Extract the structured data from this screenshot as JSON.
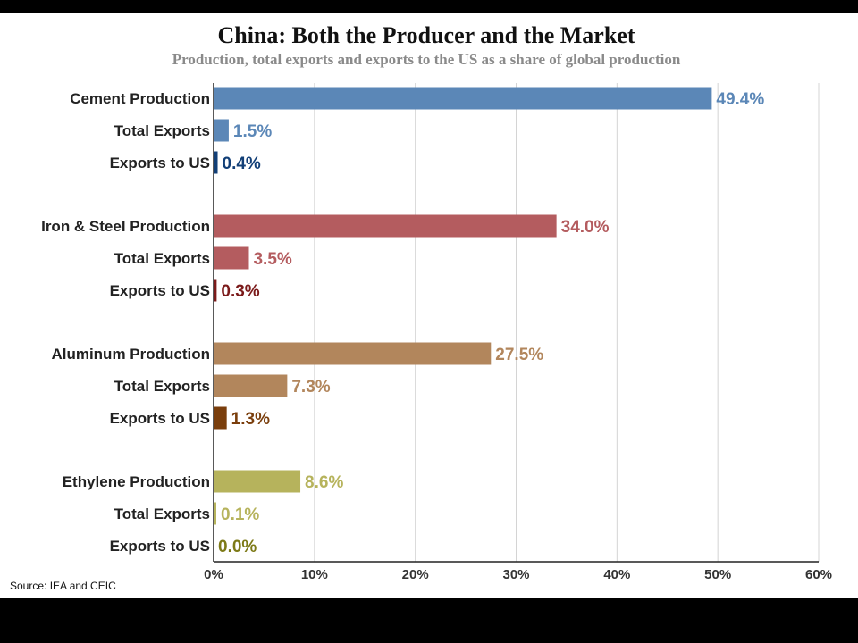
{
  "header": {
    "title": "China: Both the Producer and the Market",
    "subtitle": "Production, total exports and exports to the US as a share of global production"
  },
  "footer": {
    "source": "Source: IEA and CEIC"
  },
  "chart_data": {
    "type": "bar",
    "orientation": "horizontal",
    "title": "China: Both the Producer and the Market",
    "subtitle": "Production, total exports and exports to the US as a share of global production",
    "xlim": [
      0,
      60
    ],
    "x_ticks": [
      "0%",
      "10%",
      "20%",
      "30%",
      "40%",
      "50%",
      "60%"
    ],
    "grid": "vertical",
    "legend": "none",
    "unit": "%",
    "groups": [
      {
        "bars": [
          {
            "label": "Cement Production",
            "value": 49.4,
            "value_label": "49.4%",
            "color": "#5b87b7"
          },
          {
            "label": "Total Exports",
            "value": 1.5,
            "value_label": "1.5%",
            "color": "#5b87b7"
          },
          {
            "label": "Exports to US",
            "value": 0.4,
            "value_label": "0.4%",
            "color": "#123f77"
          }
        ]
      },
      {
        "bars": [
          {
            "label": "Iron & Steel Production",
            "value": 34.0,
            "value_label": "34.0%",
            "color": "#b45c5f"
          },
          {
            "label": "Total Exports",
            "value": 3.5,
            "value_label": "3.5%",
            "color": "#b45c5f"
          },
          {
            "label": "Exports to US",
            "value": 0.3,
            "value_label": "0.3%",
            "color": "#7b1a1a"
          }
        ]
      },
      {
        "bars": [
          {
            "label": "Aluminum Production",
            "value": 27.5,
            "value_label": "27.5%",
            "color": "#b2865c"
          },
          {
            "label": "Total Exports",
            "value": 7.3,
            "value_label": "7.3%",
            "color": "#b2865c"
          },
          {
            "label": "Exports to US",
            "value": 1.3,
            "value_label": "1.3%",
            "color": "#7a3e0c"
          }
        ]
      },
      {
        "bars": [
          {
            "label": "Ethylene Production",
            "value": 8.6,
            "value_label": "8.6%",
            "color": "#b6b35c"
          },
          {
            "label": "Total Exports",
            "value": 0.1,
            "value_label": "0.1%",
            "color": "#b6b35c"
          },
          {
            "label": "Exports to US",
            "value": 0.0,
            "value_label": "0.0%",
            "color": "#7d7a17"
          }
        ]
      }
    ]
  }
}
